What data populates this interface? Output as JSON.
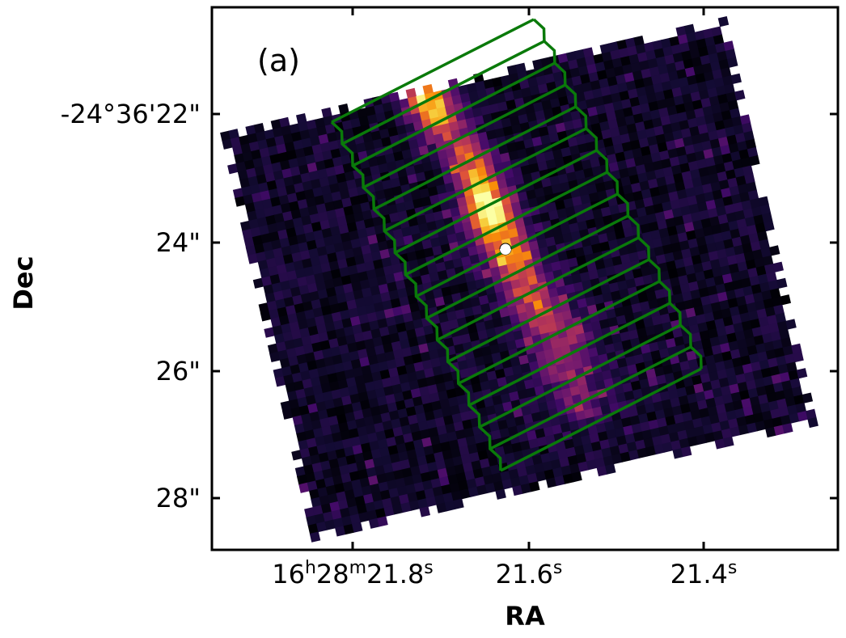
{
  "panel_label": "(a)",
  "axes": {
    "xlabel": "RA",
    "ylabel": "Dec",
    "xticks": [
      {
        "h": "16",
        "h_unit": "h",
        "m": "28",
        "m_unit": "m",
        "s": "21.8",
        "s_unit": "s"
      },
      {
        "s": "21.6",
        "s_unit": "s"
      },
      {
        "s": "21.4",
        "s_unit": "s"
      }
    ],
    "yticks": [
      "-24°36'22\"",
      "24\"",
      "26\"",
      "28\""
    ]
  },
  "image": {
    "colormap": "inferno",
    "background": "#ffffff",
    "frame_color": "#000000"
  },
  "overlay": {
    "slit_color": "#0a7a0a",
    "slice_count": 16,
    "marker_color": "#ffffff"
  }
}
